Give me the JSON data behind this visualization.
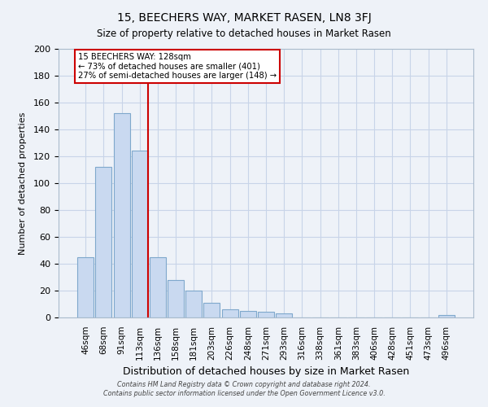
{
  "title": "15, BEECHERS WAY, MARKET RASEN, LN8 3FJ",
  "subtitle": "Size of property relative to detached houses in Market Rasen",
  "xlabel": "Distribution of detached houses by size in Market Rasen",
  "ylabel": "Number of detached properties",
  "bar_labels": [
    "46sqm",
    "68sqm",
    "91sqm",
    "113sqm",
    "136sqm",
    "158sqm",
    "181sqm",
    "203sqm",
    "226sqm",
    "248sqm",
    "271sqm",
    "293sqm",
    "316sqm",
    "338sqm",
    "361sqm",
    "383sqm",
    "406sqm",
    "428sqm",
    "451sqm",
    "473sqm",
    "496sqm"
  ],
  "bar_values": [
    45,
    112,
    152,
    124,
    45,
    28,
    20,
    11,
    6,
    5,
    4,
    3,
    0,
    0,
    0,
    0,
    0,
    0,
    0,
    0,
    2
  ],
  "bar_color": "#c9d9f0",
  "bar_edge_color": "#7fa8cc",
  "vline_color": "#cc0000",
  "annotation_title": "15 BEECHERS WAY: 128sqm",
  "annotation_line1": "← 73% of detached houses are smaller (401)",
  "annotation_line2": "27% of semi-detached houses are larger (148) →",
  "annotation_box_color": "#ffffff",
  "annotation_box_edge": "#cc0000",
  "ylim": [
    0,
    200
  ],
  "yticks": [
    0,
    20,
    40,
    60,
    80,
    100,
    120,
    140,
    160,
    180,
    200
  ],
  "footer1": "Contains HM Land Registry data © Crown copyright and database right 2024.",
  "footer2": "Contains public sector information licensed under the Open Government Licence v3.0.",
  "bg_color": "#eef2f8",
  "plot_bg_color": "#eef2f8",
  "grid_color": "#c8d4e8"
}
